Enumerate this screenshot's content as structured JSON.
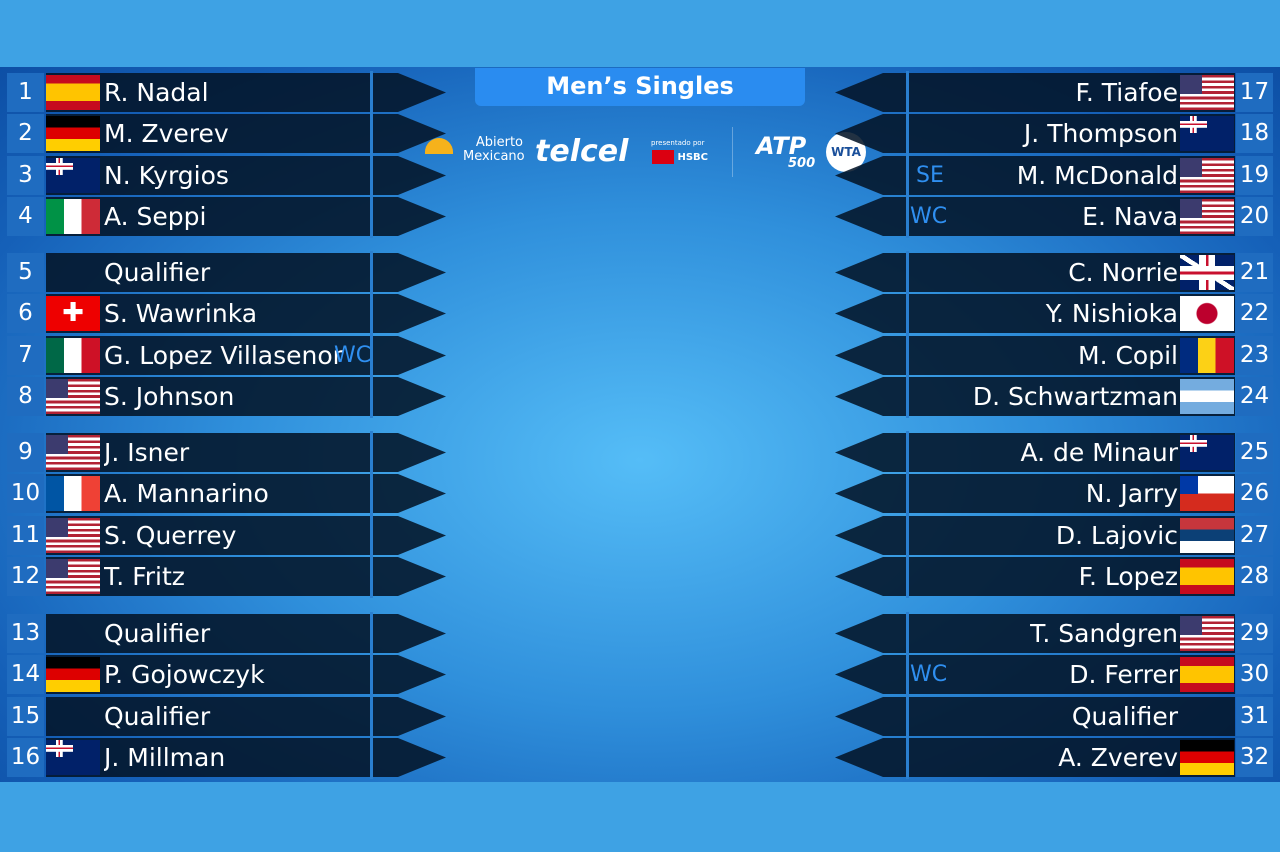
{
  "title": "Men’s Singles",
  "logos": {
    "tournament": "Abierto Mexicano",
    "sponsor": "telcel",
    "presented_by": "presentado por",
    "bank": "HSBC",
    "atp": "ATP",
    "atp_level": "500",
    "wta": "WTA"
  },
  "colors": {
    "background": "#3ea2e4",
    "row_panel": "#03142a",
    "seed_box": "#1f6cc0",
    "tag": "#2f8ff0",
    "title_bar": "#2a8cf0"
  },
  "left": [
    {
      "seed": "1",
      "country": "ESP",
      "name": "R. Nadal",
      "tag": ""
    },
    {
      "seed": "2",
      "country": "GER",
      "name": "M. Zverev",
      "tag": ""
    },
    {
      "seed": "3",
      "country": "AUS",
      "name": "N. Kyrgios",
      "tag": ""
    },
    {
      "seed": "4",
      "country": "ITA",
      "name": "A. Seppi",
      "tag": ""
    },
    {
      "seed": "5",
      "country": "",
      "name": "Qualifier",
      "tag": ""
    },
    {
      "seed": "6",
      "country": "SUI",
      "name": "S. Wawrinka",
      "tag": ""
    },
    {
      "seed": "7",
      "country": "MEX",
      "name": "G. Lopez Villasenor",
      "tag": "WC"
    },
    {
      "seed": "8",
      "country": "USA",
      "name": "S. Johnson",
      "tag": ""
    },
    {
      "seed": "9",
      "country": "USA",
      "name": "J. Isner",
      "tag": ""
    },
    {
      "seed": "10",
      "country": "FRA",
      "name": "A. Mannarino",
      "tag": ""
    },
    {
      "seed": "11",
      "country": "USA",
      "name": "S. Querrey",
      "tag": ""
    },
    {
      "seed": "12",
      "country": "USA",
      "name": "T. Fritz",
      "tag": ""
    },
    {
      "seed": "13",
      "country": "",
      "name": "Qualifier",
      "tag": ""
    },
    {
      "seed": "14",
      "country": "GER",
      "name": "P. Gojowczyk",
      "tag": ""
    },
    {
      "seed": "15",
      "country": "",
      "name": "Qualifier",
      "tag": ""
    },
    {
      "seed": "16",
      "country": "AUS",
      "name": "J. Millman",
      "tag": ""
    }
  ],
  "right": [
    {
      "seed": "17",
      "country": "USA",
      "name": "F. Tiafoe",
      "tag": ""
    },
    {
      "seed": "18",
      "country": "AUS",
      "name": "J. Thompson",
      "tag": ""
    },
    {
      "seed": "19",
      "country": "USA",
      "name": "M. McDonald",
      "tag": "SE"
    },
    {
      "seed": "20",
      "country": "USA",
      "name": "E. Nava",
      "tag": "WC"
    },
    {
      "seed": "21",
      "country": "GBR",
      "name": "C. Norrie",
      "tag": ""
    },
    {
      "seed": "22",
      "country": "JPN",
      "name": "Y. Nishioka",
      "tag": ""
    },
    {
      "seed": "23",
      "country": "ROU",
      "name": "M. Copil",
      "tag": ""
    },
    {
      "seed": "24",
      "country": "ARG",
      "name": "D. Schwartzman",
      "tag": ""
    },
    {
      "seed": "25",
      "country": "AUS",
      "name": "A. de Minaur",
      "tag": ""
    },
    {
      "seed": "26",
      "country": "CHI",
      "name": "N. Jarry",
      "tag": ""
    },
    {
      "seed": "27",
      "country": "SRB",
      "name": "D. Lajovic",
      "tag": ""
    },
    {
      "seed": "28",
      "country": "ESP",
      "name": "F. Lopez",
      "tag": ""
    },
    {
      "seed": "29",
      "country": "USA",
      "name": "T. Sandgren",
      "tag": ""
    },
    {
      "seed": "30",
      "country": "ESP",
      "name": "D. Ferrer",
      "tag": "WC"
    },
    {
      "seed": "31",
      "country": "",
      "name": "Qualifier",
      "tag": ""
    },
    {
      "seed": "32",
      "country": "GER",
      "name": "A. Zverev",
      "tag": ""
    }
  ]
}
